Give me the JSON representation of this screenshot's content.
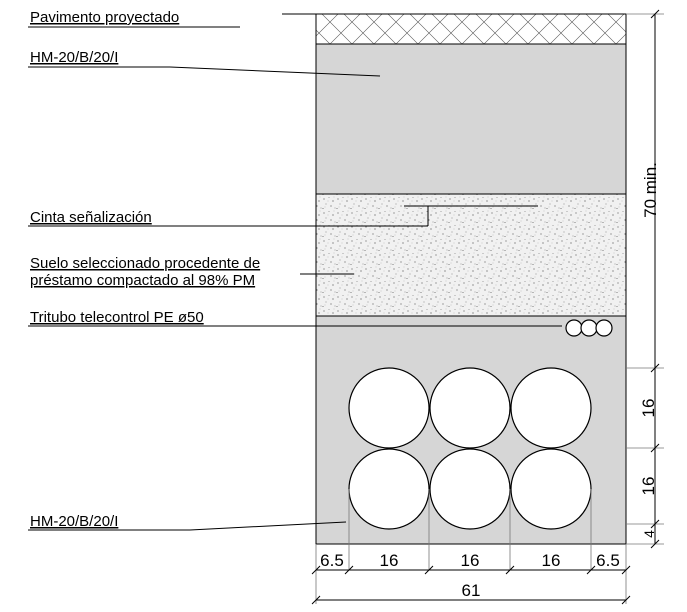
{
  "labels": {
    "pavimento": "Pavimento proyectado",
    "hormigon_top": "HM-20/B/20/I",
    "cinta": "Cinta señalización",
    "suelo_line1": "Suelo seleccionado procedente de",
    "suelo_line2": "préstamo compactado al 98% PM",
    "tritubo": "Tritubo  telecontrol PE ø50",
    "hormigon_bottom": "HM-20/B/20/I"
  },
  "dimensions": {
    "right_total": "70 min.",
    "right_row1": "16",
    "right_row2": "16",
    "right_bottom": "4",
    "bottom_left": "6.5",
    "bottom_col1": "16",
    "bottom_col2": "16",
    "bottom_col3": "16",
    "bottom_right": "6.5",
    "bottom_total": "61"
  },
  "colors": {
    "concrete": "#d6d6d6",
    "line": "#000000",
    "leader": "#777777"
  }
}
